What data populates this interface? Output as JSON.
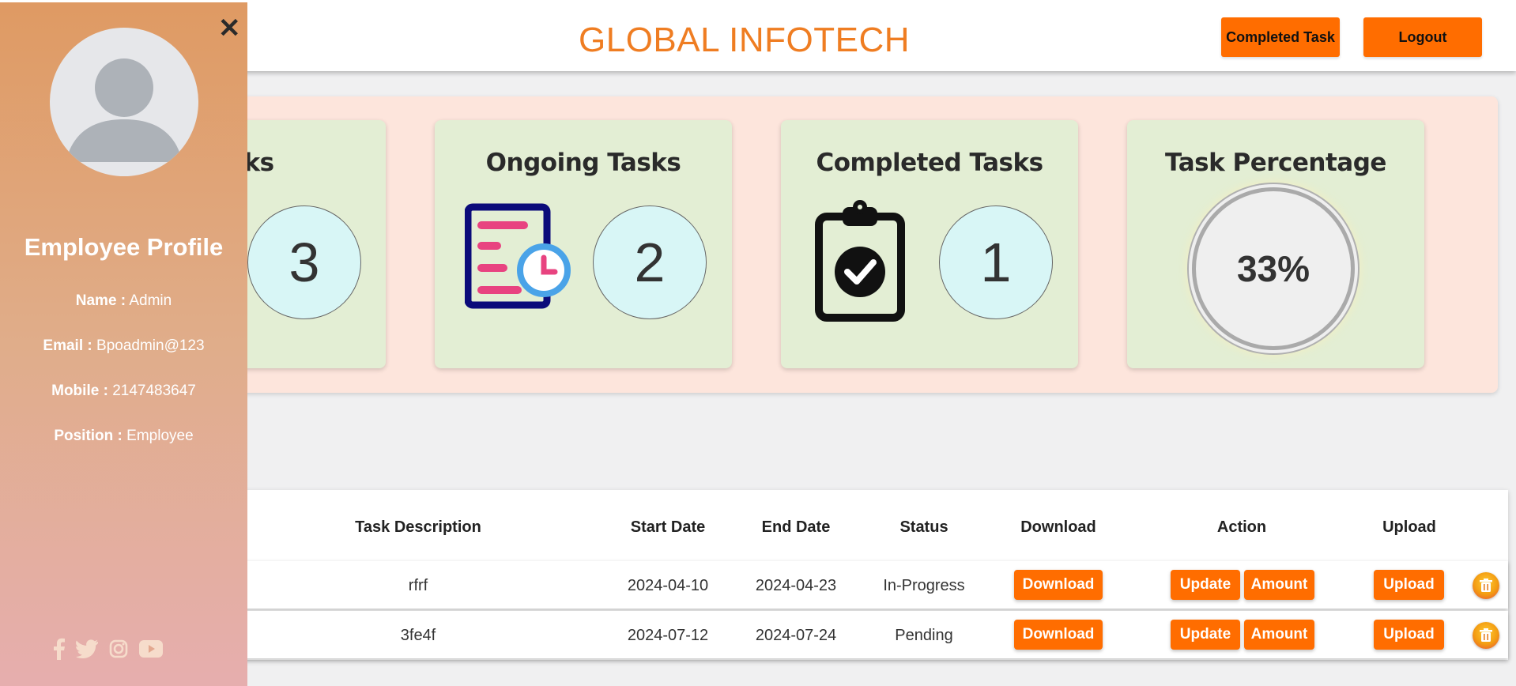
{
  "header": {
    "brand": "GLOBAL INFOTECH",
    "completed_task_label": "Completed Task",
    "logout_label": "Logout"
  },
  "stats": {
    "total": {
      "title": "Tasks",
      "count": "3"
    },
    "ongoing": {
      "title": "Ongoing Tasks",
      "count": "2"
    },
    "completed": {
      "title": "Completed Tasks",
      "count": "1"
    },
    "percentage": {
      "title": "Task Percentage",
      "value": "33%"
    }
  },
  "table": {
    "headers": [
      "Task Description",
      "Start Date",
      "End Date",
      "Status",
      "Download",
      "Action",
      "Upload"
    ],
    "rows": [
      {
        "description": "rfrf",
        "start": "2024-04-10",
        "end": "2024-04-23",
        "status": "In-Progress"
      },
      {
        "description": "3fe4f",
        "start": "2024-07-12",
        "end": "2024-07-24",
        "status": "Pending"
      }
    ],
    "download_label": "Download",
    "update_label": "Update",
    "amount_label": "Amount",
    "upload_label": "Upload"
  },
  "sidebar": {
    "title": "Employee Profile",
    "name_label": "Name :",
    "name": "Admin",
    "email_label": "Email :",
    "email": "Bpoadmin@123",
    "mobile_label": "Mobile :",
    "mobile": "2147483647",
    "position_label": "Position :",
    "position": "Employee",
    "socials": [
      "facebook-icon",
      "twitter-icon",
      "instagram-icon",
      "youtube-icon"
    ]
  },
  "colors": {
    "accent": "#ff6d00",
    "brand": "#ef7d22",
    "card": "#e3eed4",
    "panel": "#fde5dc"
  }
}
